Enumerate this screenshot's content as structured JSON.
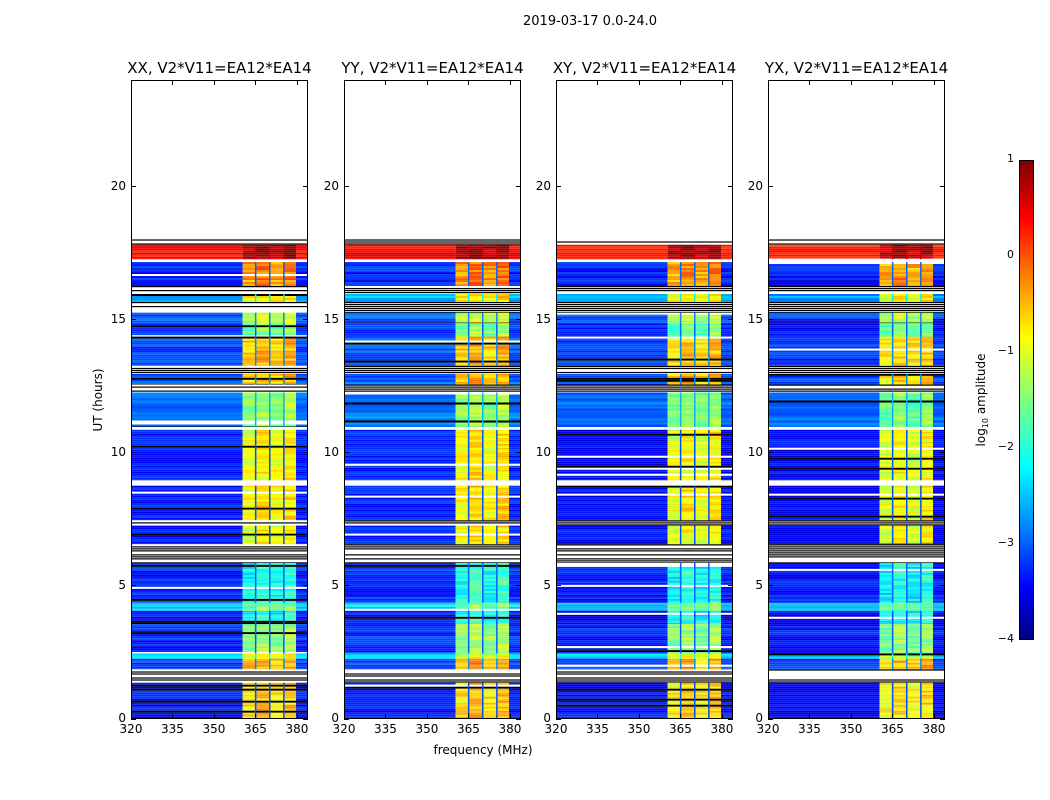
{
  "suptitle": "2019-03-17 0.0-24.0",
  "chart_data": {
    "type": "heatmap",
    "title": "2019-03-17 0.0-24.0",
    "xlabel": "frequency (MHz)",
    "ylabel": "UT (hours)",
    "xlim": [
      320,
      384
    ],
    "ylim": [
      0,
      24
    ],
    "xticks": [
      "320",
      "335",
      "350",
      "365",
      "380"
    ],
    "xtick_values": [
      320,
      335,
      350,
      365,
      380
    ],
    "yticks": [
      "0",
      "5",
      "10",
      "15",
      "20"
    ],
    "ytick_values": [
      0,
      5,
      10,
      15,
      20
    ],
    "colormap": "jet",
    "colorbar": {
      "label_main": "log",
      "label_sub": "10",
      "label_rest": " amplitude",
      "vmin": -4,
      "vmax": 1,
      "ticks": [
        "1",
        "0",
        "−1",
        "−2",
        "−3",
        "−4"
      ],
      "tick_values": [
        1,
        0,
        -1,
        -2,
        -3,
        -4
      ]
    },
    "band_mhz": [
      360,
      379.3
    ],
    "subband_edges_mhz": [
      364.8,
      369.9,
      375.0
    ],
    "panels": [
      {
        "title": "XX, V2*V11=EA12*EA14",
        "offset": 0
      },
      {
        "title": "YY, V2*V11=EA12*EA14",
        "offset": 0.05
      },
      {
        "title": "XY, V2*V11=EA12*EA14",
        "offset": -0.05
      },
      {
        "title": "YX, V2*V11=EA12*EA14",
        "offset": -0.1
      }
    ],
    "segments": [
      {
        "t": [
          17.85,
          18.05
        ],
        "kind": "flag"
      },
      {
        "t": [
          17.3,
          17.85
        ],
        "bg": 0.3,
        "band": 0.8
      },
      {
        "t": [
          17.2,
          17.3
        ],
        "kind": "gap"
      },
      {
        "t": [
          16.3,
          17.2
        ],
        "bg": -3.2,
        "band": -0.3
      },
      {
        "t": [
          16.0,
          16.3
        ],
        "kind": "flag"
      },
      {
        "t": [
          15.7,
          16.0
        ],
        "bg": -2.5,
        "band": -0.8
      },
      {
        "t": [
          15.3,
          15.7
        ],
        "kind": "flag"
      },
      {
        "t": [
          14.9,
          15.3
        ],
        "bg": -3.0,
        "band": -1.2
      },
      {
        "t": [
          14.4,
          14.9
        ],
        "bg": -3.2,
        "band": -1.5
      },
      {
        "t": [
          13.3,
          14.4
        ],
        "bg": -3.0,
        "band": -0.6
      },
      {
        "t": [
          13.0,
          13.3
        ],
        "kind": "flag"
      },
      {
        "t": [
          12.6,
          13.0
        ],
        "bg": -3.0,
        "band": -0.6
      },
      {
        "t": [
          12.3,
          12.6
        ],
        "kind": "flag"
      },
      {
        "t": [
          11.0,
          12.3
        ],
        "bg": -2.8,
        "band": -1.4
      },
      {
        "t": [
          10.9,
          11.0
        ],
        "kind": "gap"
      },
      {
        "t": [
          9.0,
          10.9
        ],
        "bg": -3.3,
        "band": -0.9
      },
      {
        "t": [
          8.8,
          9.0
        ],
        "kind": "gap"
      },
      {
        "t": [
          7.5,
          8.8
        ],
        "bg": -3.3,
        "band": -0.8
      },
      {
        "t": [
          7.3,
          7.5
        ],
        "kind": "flag"
      },
      {
        "t": [
          6.6,
          7.3
        ],
        "bg": -3.3,
        "band": -0.9
      },
      {
        "t": [
          5.9,
          6.6
        ],
        "kind": "flag"
      },
      {
        "t": [
          4.4,
          5.9
        ],
        "bg": -3.2,
        "band": -2.0
      },
      {
        "t": [
          4.1,
          4.4
        ],
        "bg": -2.3,
        "band": -1.5
      },
      {
        "t": [
          3.6,
          4.1
        ],
        "bg": -3.3,
        "band": -2.0
      },
      {
        "t": [
          2.5,
          3.6
        ],
        "bg": -3.2,
        "band": -1.4
      },
      {
        "t": [
          2.3,
          2.5
        ],
        "bg": -2.3,
        "band": -1.0
      },
      {
        "t": [
          1.9,
          2.3
        ],
        "bg": -3.0,
        "band": -0.5
      },
      {
        "t": [
          1.4,
          1.9
        ],
        "kind": "flag"
      },
      {
        "t": [
          0.0,
          1.4
        ],
        "bg": -3.3,
        "band": -0.7
      }
    ]
  }
}
